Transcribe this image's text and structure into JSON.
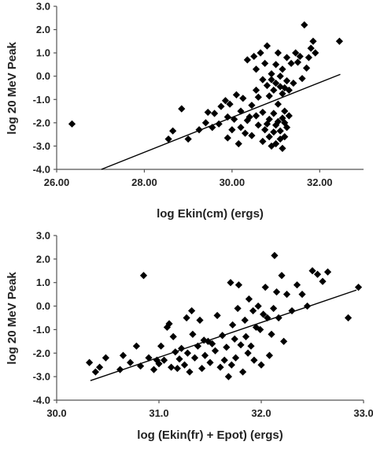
{
  "chart_data": [
    {
      "type": "scatter",
      "title": "",
      "xlabel": "log Ekin(cm) (ergs)",
      "ylabel": "log 20 MeV Peak",
      "xlim": [
        26.0,
        33.0
      ],
      "ylim": [
        -4.0,
        3.0
      ],
      "xticks": [
        26.0,
        28.0,
        30.0,
        32.0
      ],
      "yticks": [
        -4.0,
        -3.0,
        -2.0,
        -1.0,
        0.0,
        1.0,
        2.0,
        3.0
      ],
      "xtick_labels": [
        "26.00",
        "28.00",
        "30.00",
        "32.00"
      ],
      "ytick_labels": [
        "-4.0",
        "-3.0",
        "-2.0",
        "-1.0",
        "0.0",
        "1.0",
        "2.0",
        "3.0"
      ],
      "marker": "diamond",
      "grid": false,
      "trendline": {
        "x": [
          27.02,
          32.47
        ],
        "y": [
          -4.0,
          0.08
        ]
      },
      "points": [
        [
          26.35,
          -2.05
        ],
        [
          28.55,
          -2.7
        ],
        [
          28.65,
          -2.35
        ],
        [
          28.85,
          -1.4
        ],
        [
          29.0,
          -2.7
        ],
        [
          29.25,
          -2.3
        ],
        [
          29.4,
          -2.0
        ],
        [
          29.45,
          -1.55
        ],
        [
          29.55,
          -2.2
        ],
        [
          29.6,
          -1.6
        ],
        [
          29.7,
          -2.05
        ],
        [
          29.75,
          -1.3
        ],
        [
          29.85,
          -1.05
        ],
        [
          29.9,
          -2.65
        ],
        [
          29.9,
          -1.75
        ],
        [
          29.95,
          -1.2
        ],
        [
          30.0,
          -2.3
        ],
        [
          30.05,
          -1.85
        ],
        [
          30.1,
          -0.8
        ],
        [
          30.15,
          -2.9
        ],
        [
          30.2,
          -2.2
        ],
        [
          30.2,
          -1.5
        ],
        [
          30.25,
          -0.95
        ],
        [
          30.3,
          -2.45
        ],
        [
          30.35,
          -1.9
        ],
        [
          30.35,
          0.7
        ],
        [
          30.4,
          -1.75
        ],
        [
          30.45,
          -2.55
        ],
        [
          30.45,
          -1.25
        ],
        [
          30.5,
          0.85
        ],
        [
          30.55,
          -1.7
        ],
        [
          30.55,
          -0.6
        ],
        [
          30.55,
          0.3
        ],
        [
          30.6,
          -2.1
        ],
        [
          30.6,
          -0.9
        ],
        [
          30.65,
          1.0
        ],
        [
          30.7,
          -2.8
        ],
        [
          30.7,
          -1.55
        ],
        [
          30.7,
          -0.15
        ],
        [
          30.75,
          0.55
        ],
        [
          30.75,
          -2.3
        ],
        [
          30.8,
          -2.05
        ],
        [
          30.8,
          -0.4
        ],
        [
          30.8,
          1.3
        ],
        [
          30.85,
          -2.6
        ],
        [
          30.85,
          -1.85
        ],
        [
          30.85,
          -0.85
        ],
        [
          30.9,
          -3.0
        ],
        [
          30.9,
          -0.15
        ],
        [
          30.9,
          0.1
        ],
        [
          30.95,
          -2.4
        ],
        [
          30.95,
          -1.6
        ],
        [
          30.95,
          -0.6
        ],
        [
          31.0,
          -2.9
        ],
        [
          31.0,
          -2.1
        ],
        [
          31.0,
          -0.3
        ],
        [
          31.0,
          0.5
        ],
        [
          31.05,
          -1.95
        ],
        [
          31.05,
          -1.2
        ],
        [
          31.05,
          1.0
        ],
        [
          31.1,
          -2.7
        ],
        [
          31.1,
          -2.35
        ],
        [
          31.1,
          -0.45
        ],
        [
          31.1,
          0.0
        ],
        [
          31.15,
          -3.1
        ],
        [
          31.15,
          -1.8
        ],
        [
          31.15,
          -0.75
        ],
        [
          31.15,
          0.3
        ],
        [
          31.2,
          -2.6
        ],
        [
          31.2,
          -2.0
        ],
        [
          31.2,
          -1.5
        ],
        [
          31.2,
          -0.5
        ],
        [
          31.25,
          -2.2
        ],
        [
          31.25,
          -0.2
        ],
        [
          31.25,
          0.8
        ],
        [
          31.3,
          -1.7
        ],
        [
          31.3,
          -0.6
        ],
        [
          31.35,
          0.55
        ],
        [
          31.4,
          -0.3
        ],
        [
          31.45,
          1.0
        ],
        [
          31.5,
          0.6
        ],
        [
          31.55,
          0.85
        ],
        [
          31.6,
          -0.1
        ],
        [
          31.65,
          2.2
        ],
        [
          31.7,
          0.35
        ],
        [
          31.75,
          0.8
        ],
        [
          31.8,
          1.2
        ],
        [
          31.85,
          1.5
        ],
        [
          31.9,
          1.0
        ],
        [
          32.45,
          1.5
        ]
      ]
    },
    {
      "type": "scatter",
      "title": "",
      "xlabel": "log (Ekin(fr) + Epot) (ergs)",
      "ylabel": "log 20 MeV Peak",
      "xlim": [
        30.0,
        33.0
      ],
      "ylim": [
        -4.0,
        3.0
      ],
      "xticks": [
        30.0,
        31.0,
        32.0,
        33.0
      ],
      "yticks": [
        -4.0,
        -3.0,
        -2.0,
        -1.0,
        0.0,
        1.0,
        2.0,
        3.0
      ],
      "xtick_labels": [
        "30.0",
        "31.0",
        "32.0",
        "33.0"
      ],
      "ytick_labels": [
        "-4.0",
        "-3.0",
        "-2.0",
        "-1.0",
        "0.0",
        "1.0",
        "2.0",
        "3.0"
      ],
      "marker": "diamond",
      "grid": false,
      "trendline": {
        "x": [
          30.33,
          32.93
        ],
        "y": [
          -3.17,
          0.68
        ]
      },
      "points": [
        [
          30.32,
          -2.4
        ],
        [
          30.38,
          -2.8
        ],
        [
          30.42,
          -2.6
        ],
        [
          30.48,
          -2.2
        ],
        [
          30.62,
          -2.7
        ],
        [
          30.65,
          -2.1
        ],
        [
          30.72,
          -2.4
        ],
        [
          30.78,
          -1.7
        ],
        [
          30.82,
          -2.55
        ],
        [
          30.85,
          1.3
        ],
        [
          30.9,
          -2.2
        ],
        [
          30.95,
          -2.7
        ],
        [
          30.98,
          -2.3
        ],
        [
          31.0,
          -2.45
        ],
        [
          31.02,
          -1.7
        ],
        [
          31.05,
          -2.3
        ],
        [
          31.08,
          -0.9
        ],
        [
          31.1,
          -0.75
        ],
        [
          31.12,
          -2.6
        ],
        [
          31.14,
          -1.3
        ],
        [
          31.16,
          -1.95
        ],
        [
          31.18,
          -2.65
        ],
        [
          31.2,
          -2.25
        ],
        [
          31.22,
          -1.8
        ],
        [
          31.25,
          -2.5
        ],
        [
          31.27,
          -0.5
        ],
        [
          31.28,
          -2.0
        ],
        [
          31.3,
          -2.8
        ],
        [
          31.32,
          -0.2
        ],
        [
          31.33,
          -1.2
        ],
        [
          31.35,
          -2.2
        ],
        [
          31.38,
          -1.7
        ],
        [
          31.4,
          -0.6
        ],
        [
          31.42,
          -2.65
        ],
        [
          31.44,
          -1.45
        ],
        [
          31.45,
          -2.1
        ],
        [
          31.48,
          -1.5
        ],
        [
          31.5,
          -2.4
        ],
        [
          31.52,
          -1.6
        ],
        [
          31.55,
          -1.9
        ],
        [
          31.57,
          -0.4
        ],
        [
          31.6,
          -2.6
        ],
        [
          31.62,
          -1.25
        ],
        [
          31.64,
          -2.3
        ],
        [
          31.66,
          -1.75
        ],
        [
          31.68,
          -3.0
        ],
        [
          31.7,
          1.0
        ],
        [
          31.71,
          -2.5
        ],
        [
          31.72,
          -0.8
        ],
        [
          31.74,
          -1.4
        ],
        [
          31.75,
          -2.2
        ],
        [
          31.77,
          -0.1
        ],
        [
          31.78,
          0.9
        ],
        [
          31.8,
          -1.65
        ],
        [
          31.82,
          -2.8
        ],
        [
          31.84,
          -0.6
        ],
        [
          31.85,
          -1.3
        ],
        [
          31.87,
          -2.0
        ],
        [
          31.88,
          0.3
        ],
        [
          31.9,
          -1.7
        ],
        [
          31.92,
          -0.2
        ],
        [
          31.93,
          -2.3
        ],
        [
          31.95,
          -0.9
        ],
        [
          31.97,
          0.0
        ],
        [
          31.99,
          -1.0
        ],
        [
          32.0,
          -2.5
        ],
        [
          32.02,
          -0.35
        ],
        [
          32.04,
          0.8
        ],
        [
          32.06,
          -0.5
        ],
        [
          32.08,
          -2.1
        ],
        [
          32.1,
          -1.2
        ],
        [
          32.12,
          -0.1
        ],
        [
          32.13,
          2.15
        ],
        [
          32.15,
          0.6
        ],
        [
          32.17,
          -0.5
        ],
        [
          32.2,
          1.3
        ],
        [
          32.22,
          -1.5
        ],
        [
          32.25,
          0.5
        ],
        [
          32.3,
          -0.2
        ],
        [
          32.35,
          0.9
        ],
        [
          32.4,
          0.5
        ],
        [
          32.45,
          0.0
        ],
        [
          32.5,
          1.5
        ],
        [
          32.55,
          1.35
        ],
        [
          32.6,
          1.05
        ],
        [
          32.65,
          1.45
        ],
        [
          32.85,
          -0.5
        ],
        [
          32.95,
          0.8
        ]
      ]
    }
  ]
}
